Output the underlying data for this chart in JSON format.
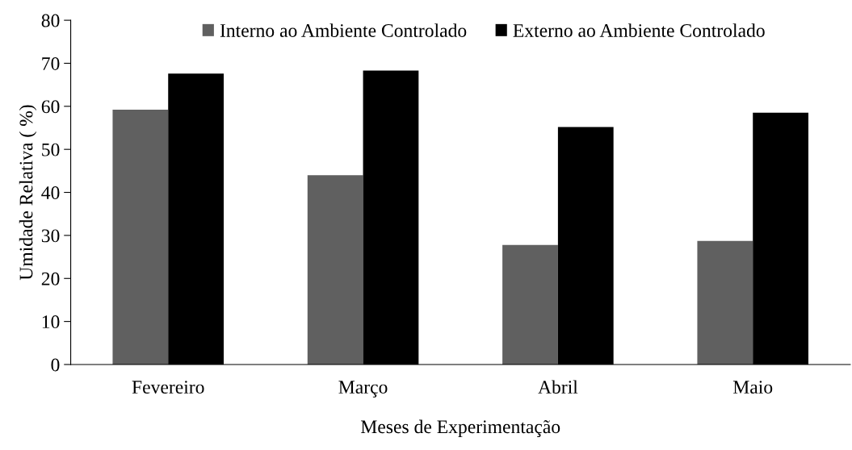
{
  "chart_data": {
    "type": "bar",
    "xlabel": "Meses de Experimentação",
    "ylabel": "Umidade Relativa ( %)",
    "categories": [
      "Fevereiro",
      "Março",
      "Abril",
      "Maio"
    ],
    "series": [
      {
        "name": "Interno ao Ambiente Controlado",
        "color": "#606060",
        "values": [
          59.2,
          44.0,
          27.8,
          28.7
        ]
      },
      {
        "name": "Externo ao Ambiente Controlado",
        "color": "#000000",
        "values": [
          67.6,
          68.3,
          55.2,
          58.5
        ]
      }
    ],
    "ylim": [
      0,
      80
    ],
    "yticks": [
      0,
      10,
      20,
      30,
      40,
      50,
      60,
      70,
      80
    ],
    "grid": false,
    "legend": "top"
  }
}
